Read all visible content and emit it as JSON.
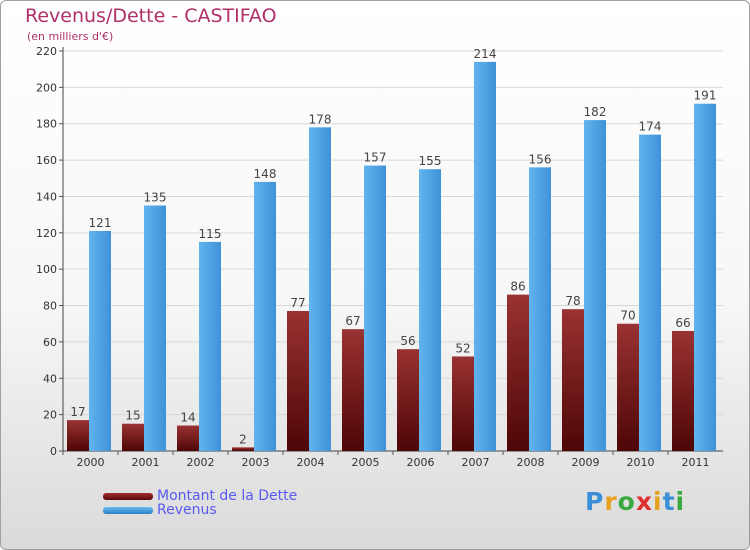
{
  "chart_data": {
    "type": "bar",
    "title": "Revenus/Dette - CASTIFAO",
    "subtitle": "(en milliers d'€)",
    "categories": [
      "2000",
      "2001",
      "2002",
      "2003",
      "2004",
      "2005",
      "2006",
      "2007",
      "2008",
      "2009",
      "2010",
      "2011"
    ],
    "series": [
      {
        "name": "Montant de la Dette",
        "color": "#7a1a1a",
        "values": [
          17,
          15,
          14,
          2,
          77,
          67,
          56,
          52,
          86,
          78,
          70,
          66
        ]
      },
      {
        "name": "Revenus",
        "color": "#4aa0e0",
        "values": [
          121,
          135,
          115,
          148,
          178,
          157,
          155,
          214,
          156,
          182,
          174,
          191
        ]
      }
    ],
    "ylim": [
      0,
      220
    ],
    "yticks": [
      0,
      20,
      40,
      60,
      80,
      100,
      120,
      140,
      160,
      180,
      200,
      220
    ],
    "grid": true,
    "legend": "bottom-left"
  },
  "branding": {
    "letters": [
      "P",
      "r",
      "o",
      "x",
      "i",
      "t",
      "i"
    ],
    "colors": [
      "#3a8fd8",
      "#e8a020",
      "#3aaa40",
      "#e03030",
      "#e8a020",
      "#3a8fd8",
      "#3aaa40"
    ]
  }
}
